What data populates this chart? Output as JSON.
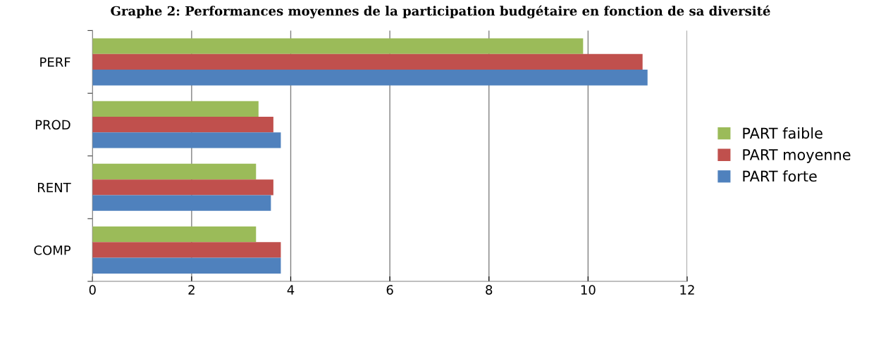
{
  "chart_data": {
    "type": "bar",
    "orientation": "horizontal",
    "title": "Graphe 2: Performances moyennes de la participation budgétaire en fonction de sa diversité",
    "categories": [
      "PERF",
      "PROD",
      "RENT",
      "COMP"
    ],
    "series": [
      {
        "name": "PART faible",
        "color": "#9bbb59",
        "values": [
          9.9,
          3.35,
          3.3,
          3.3
        ]
      },
      {
        "name": "PART moyenne",
        "color": "#c0504d",
        "values": [
          11.1,
          3.65,
          3.65,
          3.8
        ]
      },
      {
        "name": "PART forte",
        "color": "#4f81bd",
        "values": [
          11.2,
          3.8,
          3.6,
          3.8
        ]
      }
    ],
    "xlim": [
      0,
      12
    ],
    "xticks": [
      0,
      2,
      4,
      6,
      8,
      10,
      12
    ],
    "grid": "x",
    "legend": "right"
  }
}
